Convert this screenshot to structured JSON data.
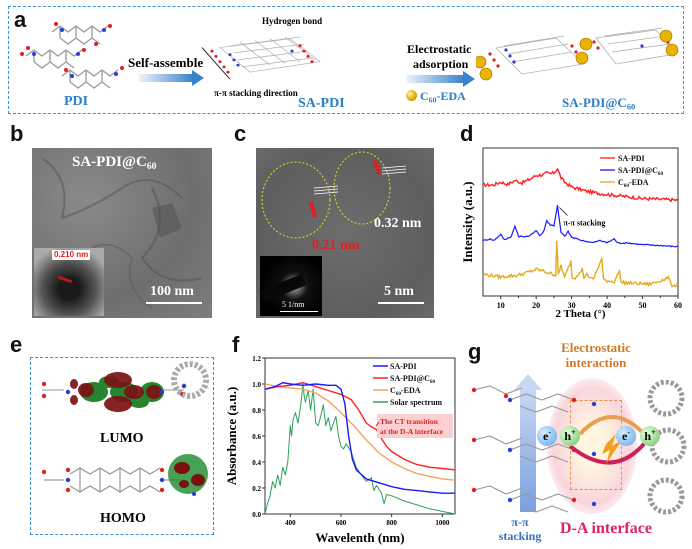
{
  "panel_a": {
    "label": "a",
    "pdi": "PDI",
    "self_assemble": "Self-assemble",
    "hydrogen_bond": "Hydrogen bond",
    "stacking_direction": "π-π stacking direction",
    "sa_pdi": "SA-PDI",
    "electrostatic": "Electrostatic",
    "adsorption": "adsorption",
    "c60_eda_prefix": "C",
    "c60_eda_sub": "60",
    "c60_eda_suffix": "-EDA",
    "sa_pdi_c60_prefix": "SA-PDI@C",
    "sa_pdi_c60_sub": "60"
  },
  "panel_b": {
    "label": "b",
    "title_prefix": "SA-PDI@C",
    "title_sub": "60",
    "inset_spacing": "0.210 nm",
    "scale_bar": "100 nm"
  },
  "panel_c": {
    "label": "c",
    "spacing_red": "0.21 nm",
    "spacing_white": "0.32 nm",
    "inset_scale": "5 1/nm",
    "scale_bar": "5 nm"
  },
  "panel_e": {
    "label": "e",
    "lumo": "LUMO",
    "homo": "HOMO"
  },
  "panel_g": {
    "label": "g",
    "electrostatic": "Electrostatic",
    "interaction": "interaction",
    "electron": "e",
    "electron_sup": "-",
    "hole": "h",
    "hole_sup": "+",
    "pi_pi": "π-π",
    "stacking": "stacking",
    "da_interface": "D-A interface"
  },
  "chart_data": [
    {
      "panel": "d",
      "type": "line",
      "title": "",
      "xlabel": "2 Theta (°)",
      "ylabel": "Intensity (a.u.)",
      "xlim": [
        5,
        60
      ],
      "xticks": [
        10,
        20,
        30,
        40,
        50,
        60
      ],
      "yticks": [],
      "legend_position": "top-right",
      "annotation": "π-π stacking",
      "series": [
        {
          "name": "SA-PDI",
          "color": "#ff2020",
          "offset": 2.0,
          "x": [
            5,
            8,
            10,
            12,
            14,
            16,
            18,
            20,
            22,
            23,
            24,
            25,
            26,
            27,
            28,
            30,
            34,
            38,
            42,
            46,
            50,
            55,
            60
          ],
          "y": [
            0.55,
            0.55,
            0.62,
            0.56,
            0.66,
            0.6,
            0.68,
            0.78,
            0.8,
            0.84,
            0.82,
            0.84,
            0.95,
            0.72,
            0.62,
            0.5,
            0.4,
            0.34,
            0.3,
            0.26,
            0.22,
            0.2,
            0.18
          ]
        },
        {
          "name": "SA-PDI@C60",
          "color": "#1a1aff",
          "offset": 1.0,
          "x": [
            5,
            7,
            8,
            10,
            11,
            13,
            14,
            15,
            18,
            20,
            21,
            22,
            23,
            24,
            25,
            26,
            27,
            28,
            29,
            30,
            33,
            36,
            38,
            40,
            42,
            43,
            46,
            50,
            55,
            60
          ],
          "y": [
            0.2,
            0.24,
            0.2,
            0.35,
            0.22,
            0.3,
            0.55,
            0.3,
            0.3,
            0.45,
            0.32,
            0.4,
            0.68,
            0.58,
            0.56,
            1.05,
            0.4,
            0.3,
            0.42,
            0.28,
            0.2,
            0.15,
            0.2,
            0.15,
            0.24,
            0.14,
            0.14,
            0.1,
            0.08,
            0.05
          ]
        },
        {
          "name": "C60-EDA",
          "color": "#e8a91c",
          "offset": 0.0,
          "x": [
            5,
            10,
            15,
            18,
            20,
            22,
            24,
            25.5,
            25.8,
            26.2,
            27,
            28,
            29.8,
            30.2,
            31,
            33,
            33.5,
            34,
            36,
            38.5,
            39,
            42,
            43.5,
            44,
            48,
            52,
            57.5,
            58,
            60
          ],
          "y": [
            0.38,
            0.32,
            0.36,
            0.44,
            0.5,
            0.46,
            0.4,
            0.36,
            1.2,
            0.36,
            0.6,
            0.3,
            0.7,
            0.28,
            0.3,
            0.52,
            0.26,
            0.4,
            0.24,
            0.76,
            0.24,
            0.2,
            0.46,
            0.18,
            0.16,
            0.14,
            0.3,
            0.12,
            0.12
          ]
        }
      ]
    },
    {
      "panel": "f",
      "type": "line",
      "title": "",
      "xlabel": "Wavelenth (nm)",
      "ylabel": "Absorbance (a.u.)",
      "xlim": [
        300,
        1050
      ],
      "ylim": [
        0,
        1.2
      ],
      "xticks": [
        400,
        600,
        800,
        1000
      ],
      "yticks": [
        0.0,
        0.2,
        0.4,
        0.6,
        0.8,
        1.0,
        1.2
      ],
      "legend_position": "top-right",
      "annotation": "The CT transition at the D-A interface",
      "annotation_line2": "at the D-A interface",
      "annotation_line1": "The CT transition",
      "series": [
        {
          "name": "SA-PDI",
          "color": "#1a1aff",
          "x": [
            300,
            340,
            370,
            400,
            450,
            500,
            550,
            580,
            600,
            615,
            630,
            645,
            660,
            700,
            750,
            800,
            850,
            900,
            950,
            1000,
            1050
          ],
          "y": [
            0.96,
            0.98,
            1.01,
            1.0,
            0.99,
            1.0,
            0.99,
            0.99,
            0.96,
            0.85,
            0.6,
            0.42,
            0.34,
            0.27,
            0.24,
            0.21,
            0.19,
            0.18,
            0.17,
            0.16,
            0.16
          ]
        },
        {
          "name": "SA-PDI@C60",
          "color": "#ff2020",
          "x": [
            300,
            350,
            400,
            450,
            500,
            550,
            600,
            640,
            670,
            700,
            720,
            740,
            760,
            780,
            800,
            850,
            900,
            950,
            1000,
            1050
          ],
          "y": [
            0.96,
            0.98,
            0.99,
            1.01,
            0.98,
            0.95,
            0.92,
            0.88,
            0.8,
            0.7,
            0.67,
            0.65,
            0.58,
            0.52,
            0.48,
            0.42,
            0.38,
            0.36,
            0.35,
            0.34
          ]
        },
        {
          "name": "C60-EDA",
          "color": "#f4a460",
          "x": [
            300,
            350,
            400,
            450,
            500,
            550,
            600,
            650,
            700,
            750,
            800,
            850,
            900,
            950,
            1000,
            1050
          ],
          "y": [
            1.0,
            0.98,
            0.97,
            0.96,
            0.93,
            0.87,
            0.78,
            0.68,
            0.57,
            0.47,
            0.4,
            0.35,
            0.31,
            0.29,
            0.27,
            0.26
          ]
        },
        {
          "name": "Solar spectrum",
          "color": "#2ea05a",
          "x": [
            300,
            310,
            320,
            330,
            340,
            350,
            360,
            370,
            380,
            390,
            400,
            405,
            410,
            420,
            430,
            440,
            450,
            455,
            460,
            470,
            480,
            490,
            500,
            510,
            520,
            530,
            540,
            550,
            560,
            570,
            580,
            590,
            600,
            610,
            620,
            640,
            660,
            680,
            700,
            720,
            730,
            740,
            760,
            770,
            780,
            800,
            850,
            900,
            950,
            1000,
            1050
          ],
          "y": [
            0.0,
            0.08,
            0.14,
            0.25,
            0.2,
            0.3,
            0.22,
            0.36,
            0.3,
            0.4,
            0.68,
            0.6,
            0.72,
            0.78,
            0.7,
            0.82,
            1.0,
            0.9,
            0.86,
            0.95,
            0.8,
            0.96,
            0.7,
            0.68,
            0.75,
            0.84,
            0.68,
            0.74,
            0.64,
            0.7,
            0.75,
            0.6,
            0.52,
            0.5,
            0.54,
            0.48,
            0.36,
            0.3,
            0.25,
            0.28,
            0.18,
            0.22,
            0.16,
            0.08,
            0.15,
            0.14,
            0.1,
            0.07,
            0.04,
            0.02,
            0.0
          ]
        }
      ]
    }
  ]
}
